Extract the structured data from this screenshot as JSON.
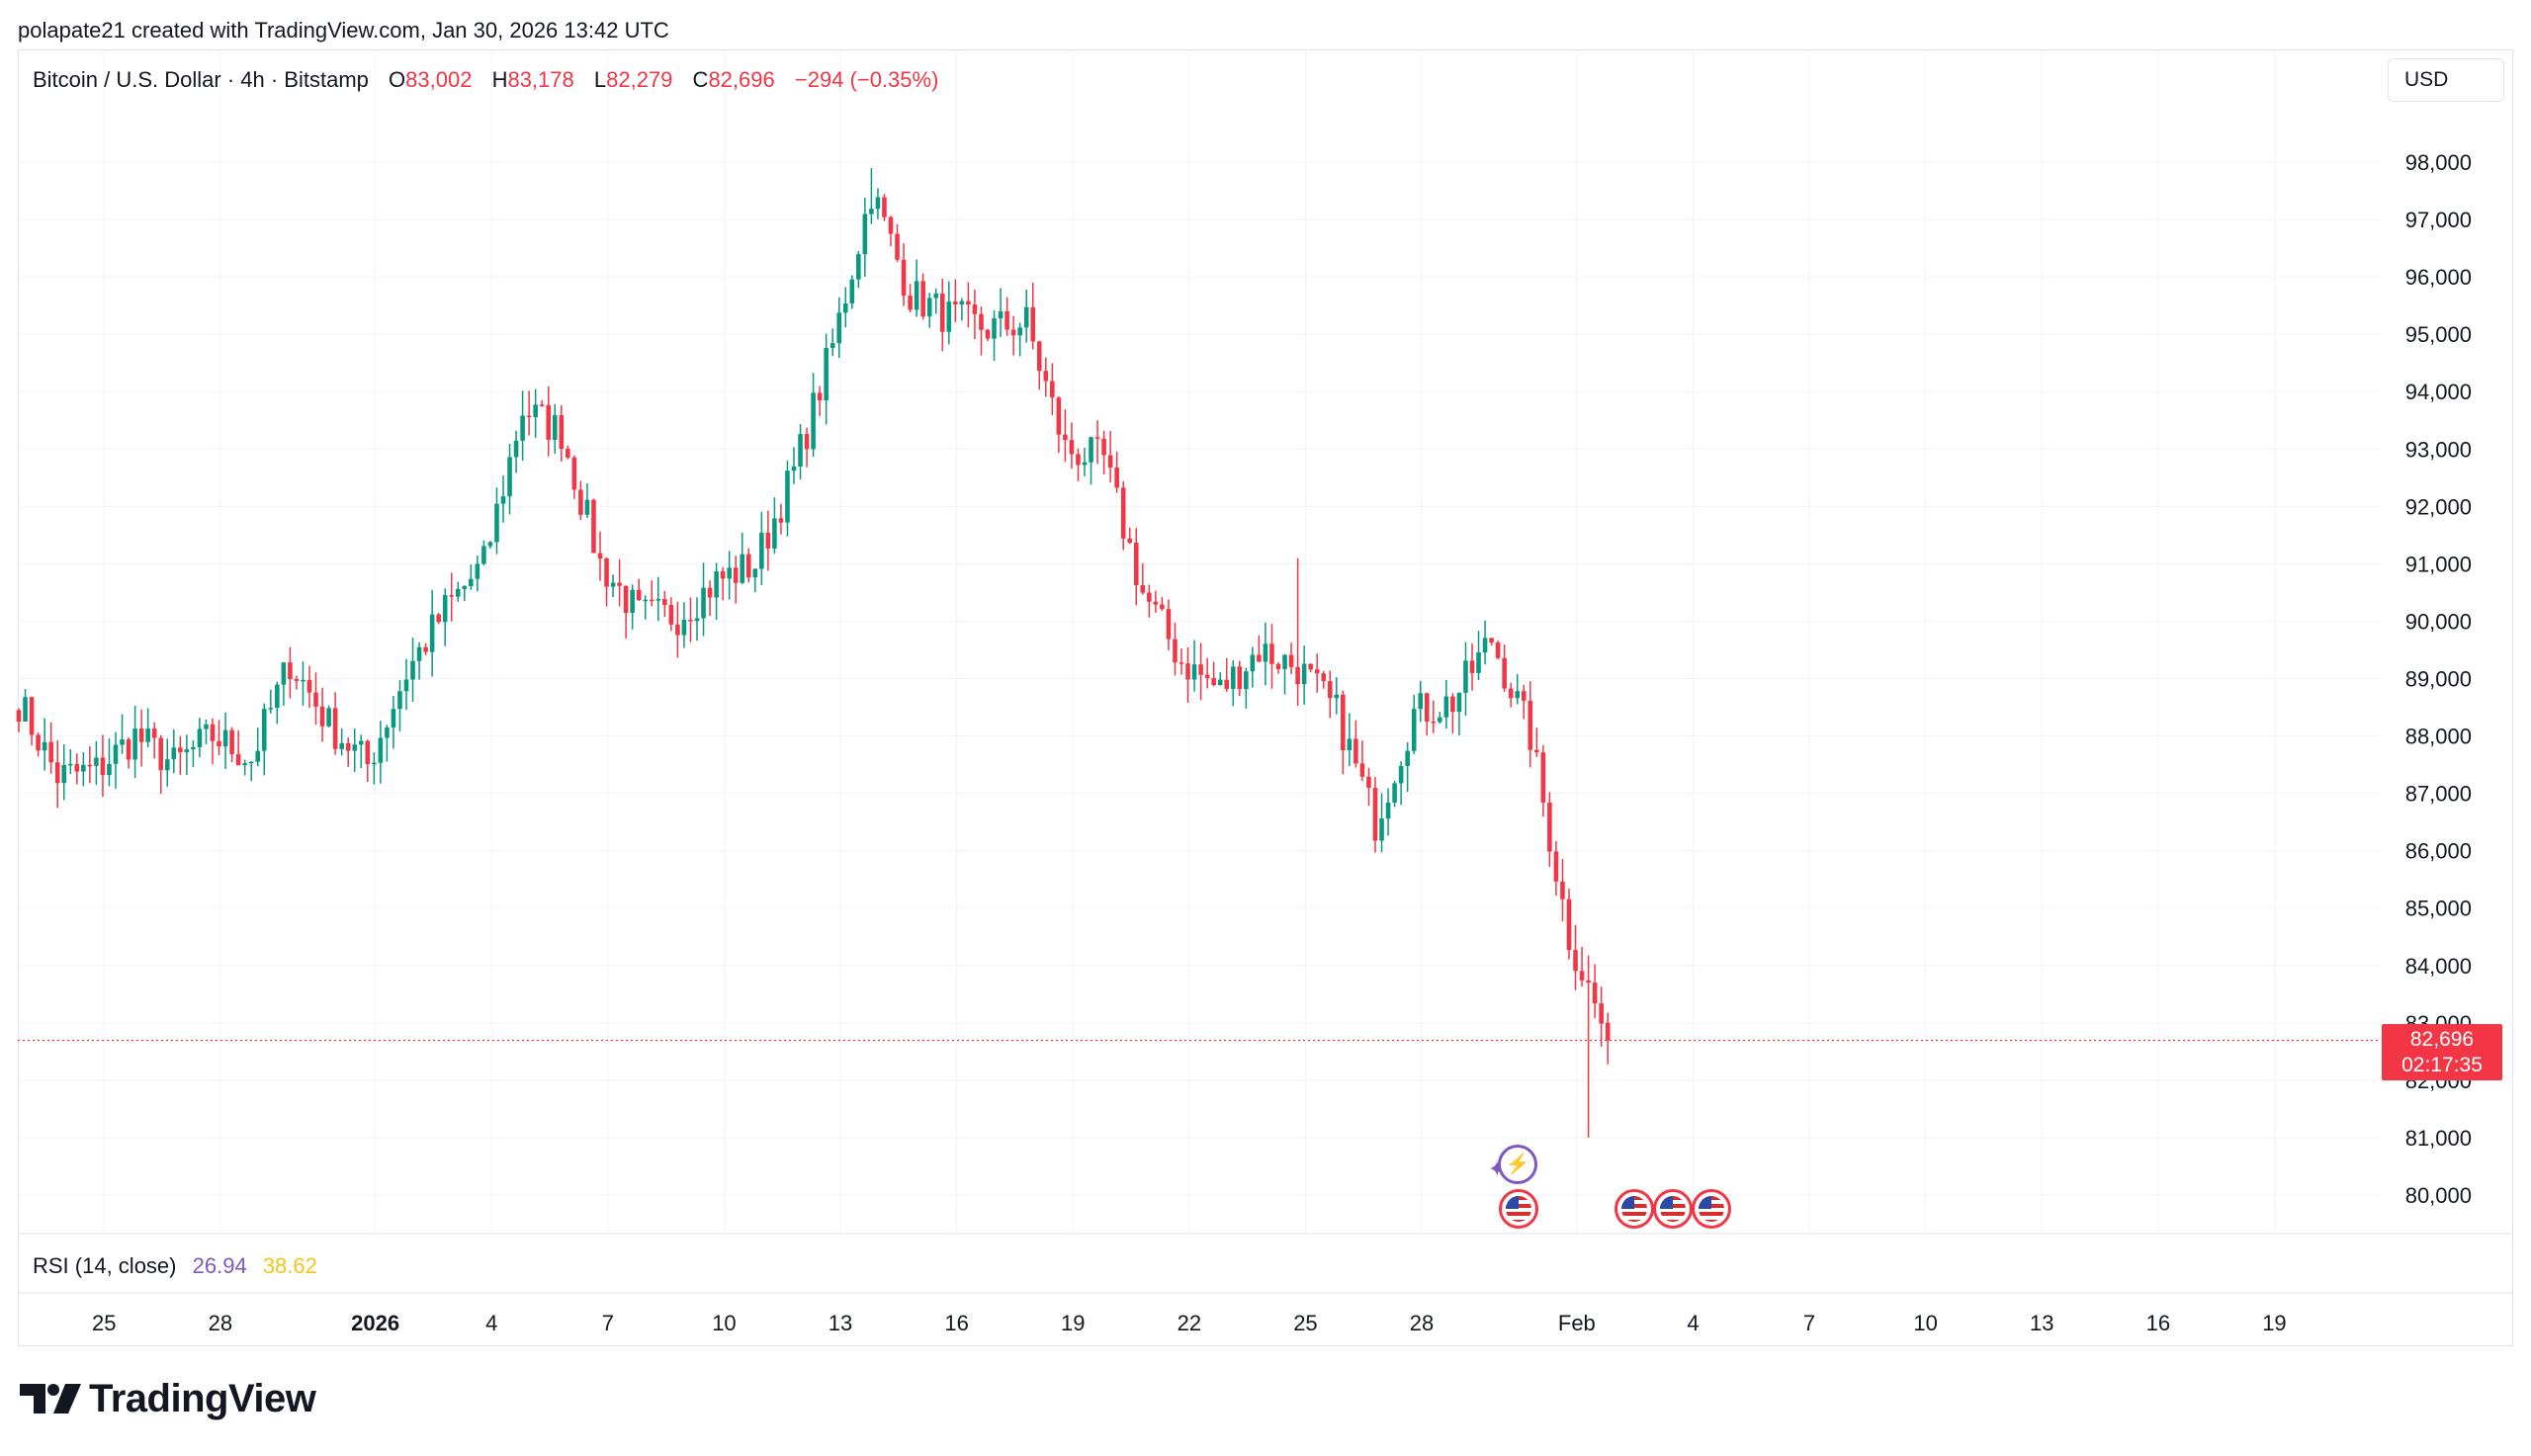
{
  "attribution": "polapate21 created with TradingView.com, Jan 30, 2026 13:42 UTC",
  "legend": {
    "symbol": "Bitcoin / U.S. Dollar · 4h · Bitstamp",
    "o_label": "O",
    "o_value": "83,002",
    "h_label": "H",
    "h_value": "83,178",
    "l_label": "L",
    "l_value": "82,279",
    "c_label": "C",
    "c_value": "82,696",
    "change": "−294 (−0.35%)"
  },
  "currency_button": "USD",
  "last_price": {
    "price": "82,696",
    "countdown": "02:17:35"
  },
  "rsi": {
    "label": "RSI (14, close)",
    "value1": "26.94",
    "value2": "38.62"
  },
  "footer": {
    "brand": "TradingView"
  },
  "colors": {
    "up": "#089981",
    "down": "#f23645",
    "grid": "#f0f3fa",
    "rsi_line": "#7e57c2",
    "rsi_ma": "#f5c518"
  },
  "icons": [
    "tradingview-logo-icon",
    "us-flag-event-icon",
    "flash-event-icon"
  ],
  "chart_data": {
    "type": "candlestick",
    "interval": "4h",
    "ylim": [
      79400,
      98800
    ],
    "y_ticks": [
      80000,
      81000,
      82000,
      83000,
      84000,
      85000,
      86000,
      87000,
      88000,
      89000,
      90000,
      91000,
      92000,
      93000,
      94000,
      95000,
      96000,
      97000,
      98000
    ],
    "x_ticks": [
      "25",
      "28",
      "2026",
      "4",
      "7",
      "10",
      "13",
      "16",
      "19",
      "22",
      "25",
      "28",
      "Feb",
      "4",
      "7",
      "10",
      "13",
      "16",
      "19"
    ],
    "x_tick_days": [
      0,
      3,
      7,
      10,
      13,
      16,
      19,
      22,
      25,
      28,
      31,
      34,
      38,
      41,
      44,
      47,
      50,
      53,
      56
    ],
    "x_range_days": [
      -2.2,
      58.2
    ],
    "start_day": -2.2,
    "candles_per_day": 6,
    "anchors": [
      [
        0,
        88600
      ],
      [
        6,
        87300
      ],
      [
        12,
        87400
      ],
      [
        18,
        88000
      ],
      [
        24,
        87500
      ],
      [
        30,
        88000
      ],
      [
        36,
        87600
      ],
      [
        42,
        89300
      ],
      [
        48,
        88200
      ],
      [
        54,
        87500
      ],
      [
        60,
        89100
      ],
      [
        66,
        90200
      ],
      [
        72,
        91000
      ],
      [
        78,
        93700
      ],
      [
        84,
        93300
      ],
      [
        90,
        91000
      ],
      [
        96,
        90100
      ],
      [
        102,
        90100
      ],
      [
        108,
        90700
      ],
      [
        114,
        91000
      ],
      [
        120,
        92600
      ],
      [
        126,
        94800
      ],
      [
        132,
        97500
      ],
      [
        138,
        95700
      ],
      [
        144,
        95300
      ],
      [
        150,
        95100
      ],
      [
        156,
        95200
      ],
      [
        162,
        93000
      ],
      [
        168,
        92800
      ],
      [
        174,
        90500
      ],
      [
        180,
        89300
      ],
      [
        186,
        88800
      ],
      [
        192,
        89500
      ],
      [
        198,
        89200
      ],
      [
        204,
        88400
      ],
      [
        210,
        86500
      ],
      [
        216,
        88400
      ],
      [
        222,
        88600
      ],
      [
        228,
        89700
      ],
      [
        234,
        88000
      ],
      [
        240,
        84500
      ],
      [
        246,
        82700
      ]
    ],
    "last": {
      "open": 83002,
      "high": 83178,
      "low": 82279,
      "close": 82696
    },
    "events_us_days": [
      35.3,
      38.3,
      39.3,
      40.3
    ],
    "event_flash_day": 35.3
  }
}
